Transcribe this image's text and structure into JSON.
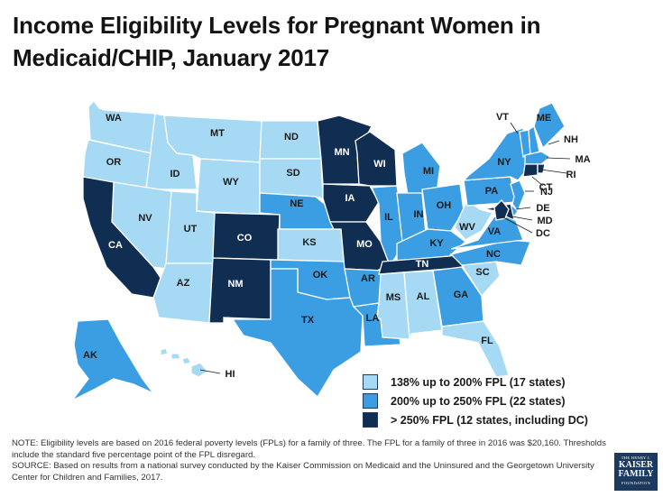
{
  "title": "Income Eligibility Levels for Pregnant Women in Medicaid/CHIP, January 2017",
  "colors": {
    "light": "#a6d9f3",
    "mid": "#3b9de2",
    "dark": "#102e52"
  },
  "legend": [
    {
      "tier": "light",
      "label": "138% up to 200% FPL (17 states)"
    },
    {
      "tier": "mid",
      "label": "200% up to 250% FPL (22 states)"
    },
    {
      "tier": "dark",
      "label": "> 250% FPL (12 states, including DC)"
    }
  ],
  "states": {
    "WA": "light",
    "OR": "light",
    "ID": "light",
    "MT": "light",
    "WY": "light",
    "NV": "light",
    "UT": "light",
    "AZ": "light",
    "ND": "light",
    "SD": "light",
    "KS": "light",
    "MS": "light",
    "AL": "light",
    "SC": "light",
    "FL": "light",
    "WV": "light",
    "HI": "light",
    "CA": "dark",
    "CO": "dark",
    "NM": "dark",
    "MN": "dark",
    "WI": "dark",
    "IA": "dark",
    "MO": "dark",
    "TN": "dark",
    "CT": "dark",
    "RI": "dark",
    "MD": "dark",
    "DC": "dark",
    "NE": "mid",
    "OK": "mid",
    "TX": "mid",
    "LA": "mid",
    "AR": "mid",
    "IL": "mid",
    "IN": "mid",
    "MI": "mid",
    "OH": "mid",
    "KY": "mid",
    "GA": "mid",
    "NC": "mid",
    "VA": "mid",
    "PA": "mid",
    "NY": "mid",
    "NJ": "mid",
    "DE": "mid",
    "VT": "mid",
    "NH": "mid",
    "ME": "mid",
    "MA": "mid",
    "AK": "mid"
  },
  "labels": {
    "WA": "WA",
    "OR": "OR",
    "ID": "ID",
    "MT": "MT",
    "WY": "WY",
    "NV": "NV",
    "UT": "UT",
    "AZ": "AZ",
    "CA": "CA",
    "CO": "CO",
    "NM": "NM",
    "ND": "ND",
    "SD": "SD",
    "NE": "NE",
    "KS": "KS",
    "OK": "OK",
    "TX": "TX",
    "MN": "MN",
    "IA": "IA",
    "MO": "MO",
    "AR": "AR",
    "LA": "LA",
    "WI": "WI",
    "IL": "IL",
    "MI": "MI",
    "IN": "IN",
    "OH": "OH",
    "KY": "KY",
    "TN": "TN",
    "MS": "MS",
    "AL": "AL",
    "GA": "GA",
    "FL": "FL",
    "SC": "SC",
    "NC": "NC",
    "VA": "VA",
    "WV": "WV",
    "PA": "PA",
    "NY": "NY",
    "VT": "VT",
    "ME": "ME",
    "NH": "NH",
    "MA": "MA",
    "RI": "RI",
    "CT": "CT",
    "NJ": "NJ",
    "DE": "DE",
    "MD": "MD",
    "DC": "DC",
    "AK": "AK",
    "HI": "HI"
  },
  "notes": {
    "note": "NOTE: Eligibility levels are based on 2016  federal poverty levels (FPLs) for a family of three. The FPL for a family of three in 2016  was $20,160. Thresholds include the standard five percentage point of the FPL disregard.",
    "source": "SOURCE: Based on results from a national survey conducted by the Kaiser Commission on Medicaid and the Uninsured and the Georgetown University Center for Children and Families, 2017."
  },
  "logo": {
    "line1": "THE HENRY J.",
    "line2": "KAISER",
    "line3": "FAMILY",
    "line4": "FOUNDATION"
  }
}
